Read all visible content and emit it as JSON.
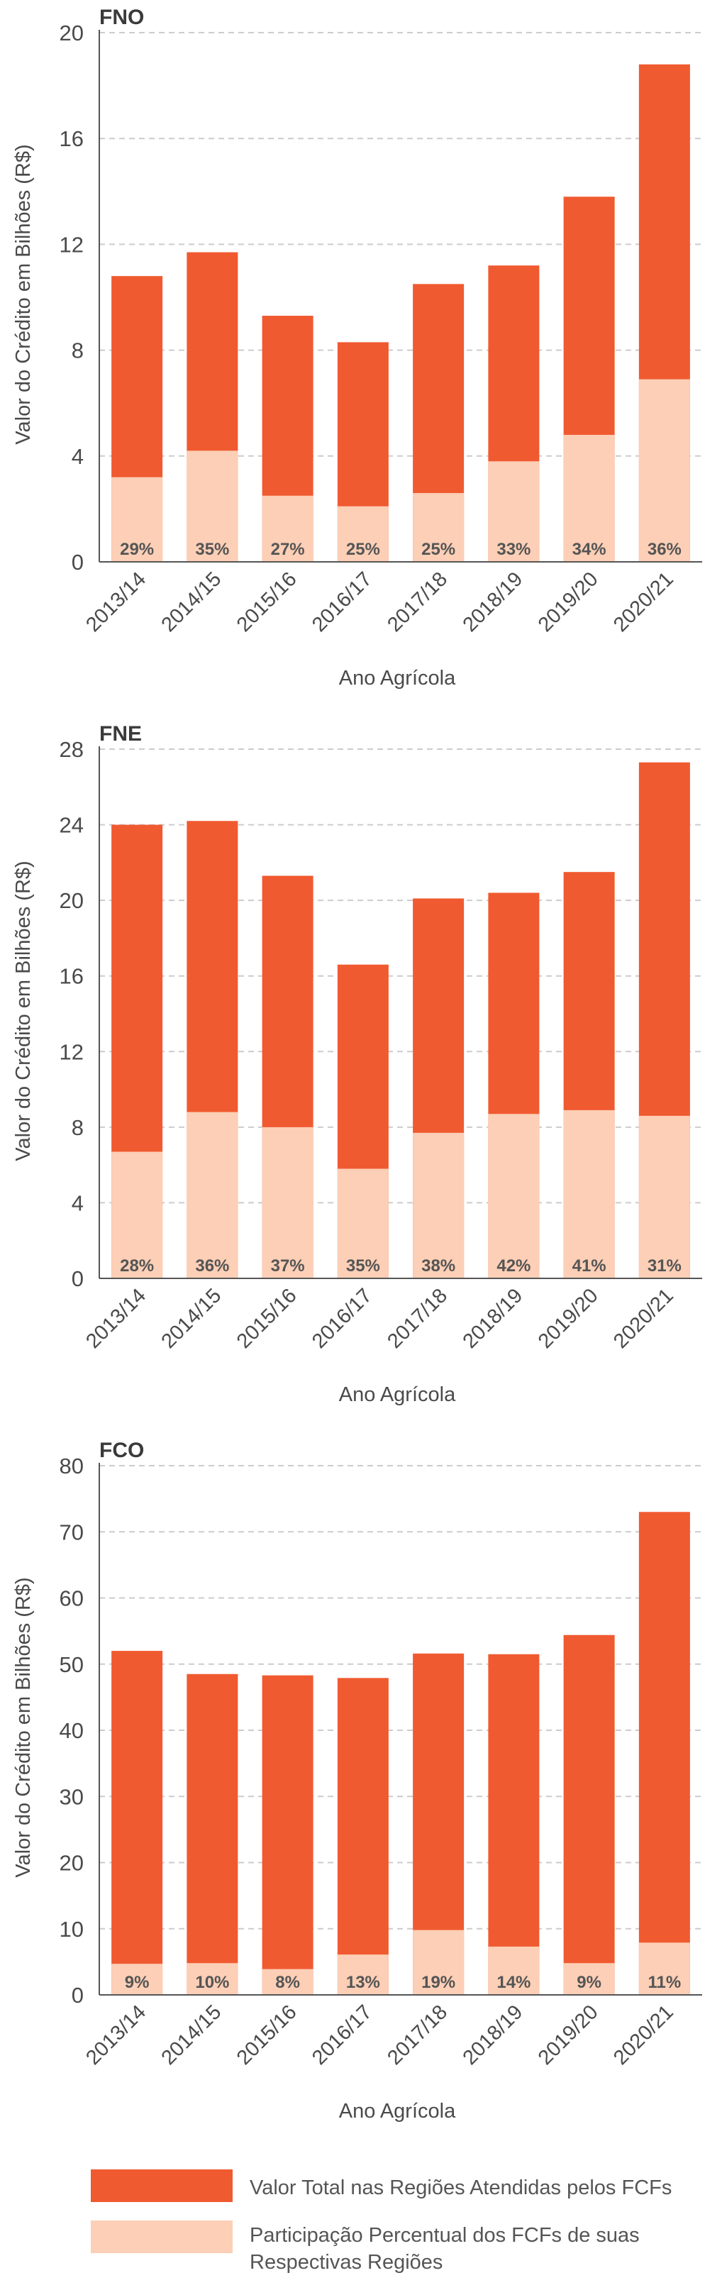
{
  "colors": {
    "total": "#f05a30",
    "share": "#fccfb6",
    "grid": "#cccccc",
    "axis": "#555555"
  },
  "chart_data": [
    {
      "type": "bar",
      "title": "FNO",
      "xlabel": "Ano Agrícola",
      "ylabel": "Valor do Crédito em Bilhões (R$)",
      "ylim": [
        0,
        20
      ],
      "yticks": [
        0,
        4,
        8,
        12,
        16,
        20
      ],
      "grid": true,
      "categories": [
        "2013/14",
        "2014/15",
        "2015/16",
        "2016/17",
        "2017/18",
        "2018/19",
        "2019/20",
        "2020/21"
      ],
      "series": [
        {
          "name": "Valor Total nas Regiões Atendidas pelos FCFs",
          "values": [
            10.8,
            11.7,
            9.3,
            8.3,
            10.5,
            11.2,
            13.8,
            18.8
          ]
        },
        {
          "name": "Participação Percentual dos FCFs de suas Respectivas Regiões",
          "values": [
            3.2,
            4.2,
            2.5,
            2.1,
            2.6,
            3.8,
            4.8,
            6.9
          ]
        }
      ],
      "labels": [
        "29%",
        "35%",
        "27%",
        "25%",
        "25%",
        "33%",
        "34%",
        "36%"
      ]
    },
    {
      "type": "bar",
      "title": "FNE",
      "xlabel": "Ano Agrícola",
      "ylabel": "Valor do Crédito em Bilhões (R$)",
      "ylim": [
        0,
        28
      ],
      "yticks": [
        0,
        4,
        8,
        12,
        16,
        20,
        24,
        28
      ],
      "grid": true,
      "categories": [
        "2013/14",
        "2014/15",
        "2015/16",
        "2016/17",
        "2017/18",
        "2018/19",
        "2019/20",
        "2020/21"
      ],
      "series": [
        {
          "name": "Valor Total nas Regiões Atendidas pelos FCFs",
          "values": [
            24.0,
            24.2,
            21.3,
            16.6,
            20.1,
            20.4,
            21.5,
            27.3
          ]
        },
        {
          "name": "Participação Percentual dos FCFs de suas Respectivas Regiões",
          "values": [
            6.7,
            8.8,
            8.0,
            5.8,
            7.7,
            8.7,
            8.9,
            8.6
          ]
        }
      ],
      "labels": [
        "28%",
        "36%",
        "37%",
        "35%",
        "38%",
        "42%",
        "41%",
        "31%"
      ]
    },
    {
      "type": "bar",
      "title": "FCO",
      "xlabel": "Ano Agrícola",
      "ylabel": "Valor do Crédito em Bilhões (R$)",
      "ylim": [
        0,
        80
      ],
      "yticks": [
        0,
        10,
        20,
        30,
        40,
        50,
        60,
        70,
        80
      ],
      "grid": true,
      "categories": [
        "2013/14",
        "2014/15",
        "2015/16",
        "2016/17",
        "2017/18",
        "2018/19",
        "2019/20",
        "2020/21"
      ],
      "series": [
        {
          "name": "Valor Total nas Regiões Atendidas pelos FCFs",
          "values": [
            52.0,
            48.5,
            48.3,
            47.9,
            51.6,
            51.5,
            54.4,
            73.0
          ]
        },
        {
          "name": "Participação Percentual dos FCFs de suas Respectivas Regiões",
          "values": [
            4.7,
            4.8,
            3.9,
            6.1,
            9.8,
            7.3,
            4.8,
            7.9
          ]
        }
      ],
      "labels": [
        "9%",
        "10%",
        "8%",
        "13%",
        "19%",
        "14%",
        "9%",
        "11%"
      ]
    }
  ],
  "legend": {
    "items": [
      {
        "label": "Valor Total nas Regiões Atendidas pelos FCFs"
      },
      {
        "label_line1": "Participação Percentual dos FCFs de suas",
        "label_line2": "Respectivas Regiões"
      }
    ]
  }
}
